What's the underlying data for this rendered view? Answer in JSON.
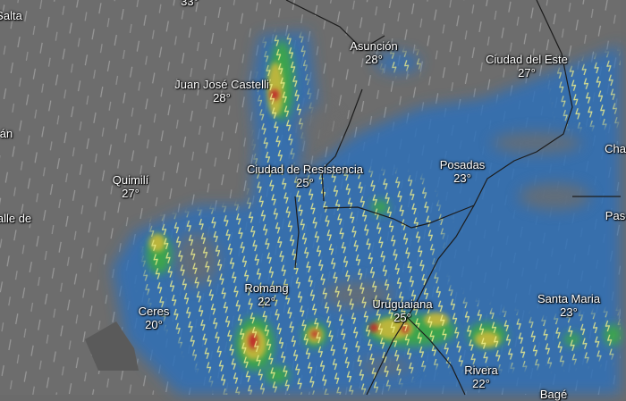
{
  "map": {
    "layer": "precipitation-thunderstorms",
    "colors": {
      "land": "#6d6d6d",
      "rain_light": "#2f6fb8",
      "rain_mid": "#2fa9a0",
      "rain_green": "#3cae3c",
      "rain_yellow": "#c9b83a",
      "rain_red": "#c0282a",
      "lightning": "#f3f28a",
      "border": "#1c1c1c"
    },
    "cities": [
      {
        "name": "Salta",
        "temp": ""
      },
      {
        "name": "",
        "temp": "33°"
      },
      {
        "name": "Asunción",
        "temp": "28°"
      },
      {
        "name": "Ciudad del Este",
        "temp": "27°"
      },
      {
        "name": "Juan José Castelli",
        "temp": "28°"
      },
      {
        "name": "án",
        "temp": ""
      },
      {
        "name": "Ciudad de Resistencia",
        "temp": "25°"
      },
      {
        "name": "Posadas",
        "temp": "23°"
      },
      {
        "name": "Cha",
        "temp": ""
      },
      {
        "name": "Quimilí",
        "temp": "27°"
      },
      {
        "name": "alle de",
        "temp": ""
      },
      {
        "name": "Pas",
        "temp": ""
      },
      {
        "name": "Romang",
        "temp": "22°"
      },
      {
        "name": "Ceres",
        "temp": "20°"
      },
      {
        "name": "Uruguaiana",
        "temp": "25°"
      },
      {
        "name": "Santa Maria",
        "temp": "23°"
      },
      {
        "name": "Rivera",
        "temp": "22°"
      },
      {
        "name": "Bagé",
        "temp": ""
      }
    ]
  }
}
